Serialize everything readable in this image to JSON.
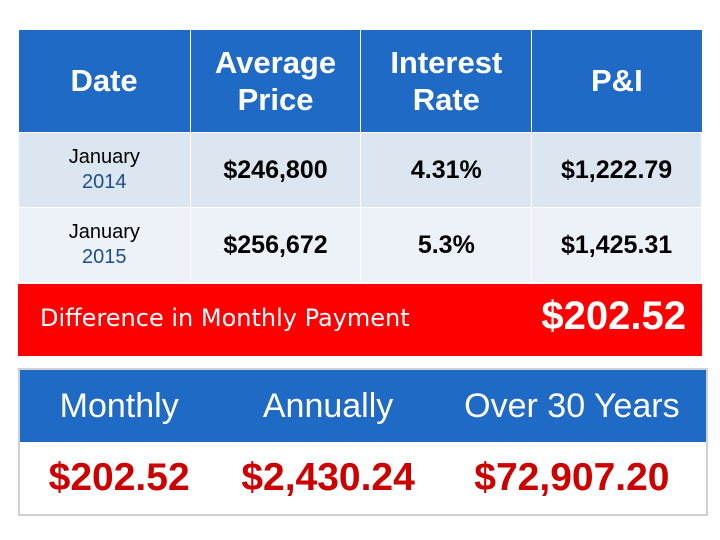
{
  "header": {
    "date": "Date",
    "avg_price_line1": "Average",
    "avg_price_line2": "Price",
    "rate_line1": "Interest",
    "rate_line2": "Rate",
    "pi": "P&I"
  },
  "rows": [
    {
      "month": "January",
      "year": "2014",
      "price": "$246,800",
      "rate": "4.31%",
      "pi": "$1,222.79"
    },
    {
      "month": "January",
      "year": "2015",
      "price": "$256,672",
      "rate": "5.3%",
      "pi": "$1,425.31"
    }
  ],
  "difference": {
    "label": "Difference in Monthly Payment",
    "value": "$202.52"
  },
  "summary": {
    "headers": [
      "Monthly",
      "Annually",
      "Over 30 Years"
    ],
    "values": [
      "$202.52",
      "$2,430.24",
      "$72,907.20"
    ]
  },
  "colors": {
    "header_blue": "#1f6ac4",
    "row_light_1": "#dce6f1",
    "row_light_2": "#ecf2f8",
    "diff_red": "#ff0000",
    "value_red": "#cc0000"
  }
}
